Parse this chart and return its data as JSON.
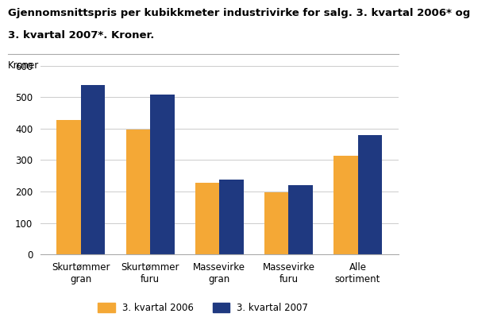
{
  "title_line1": "Gjennomsnittspris per kubikkmeter industrivirke for salg. 3. kvartal 2006* og",
  "title_line2": "3. kvartal 2007*. Kroner.",
  "ylabel_text": "Kroner",
  "categories": [
    "Skurtømmer\ngran",
    "Skurtømmer\nfuru",
    "Massevirke\ngran",
    "Massevirke\nfuru",
    "Alle\nsortiment"
  ],
  "series_2006": [
    428,
    398,
    227,
    198,
    313
  ],
  "series_2007": [
    537,
    509,
    237,
    220,
    379
  ],
  "color_2006": "#f4a836",
  "color_2007": "#1f3980",
  "legend_2006": "3. kvartal 2006",
  "legend_2007": "3. kvartal 2007",
  "ylim": [
    0,
    600
  ],
  "yticks": [
    0,
    100,
    200,
    300,
    400,
    500,
    600
  ],
  "background_color": "#ffffff",
  "title_fontsize": 9.5,
  "kroner_fontsize": 8.5,
  "tick_fontsize": 8.5,
  "legend_fontsize": 8.5
}
